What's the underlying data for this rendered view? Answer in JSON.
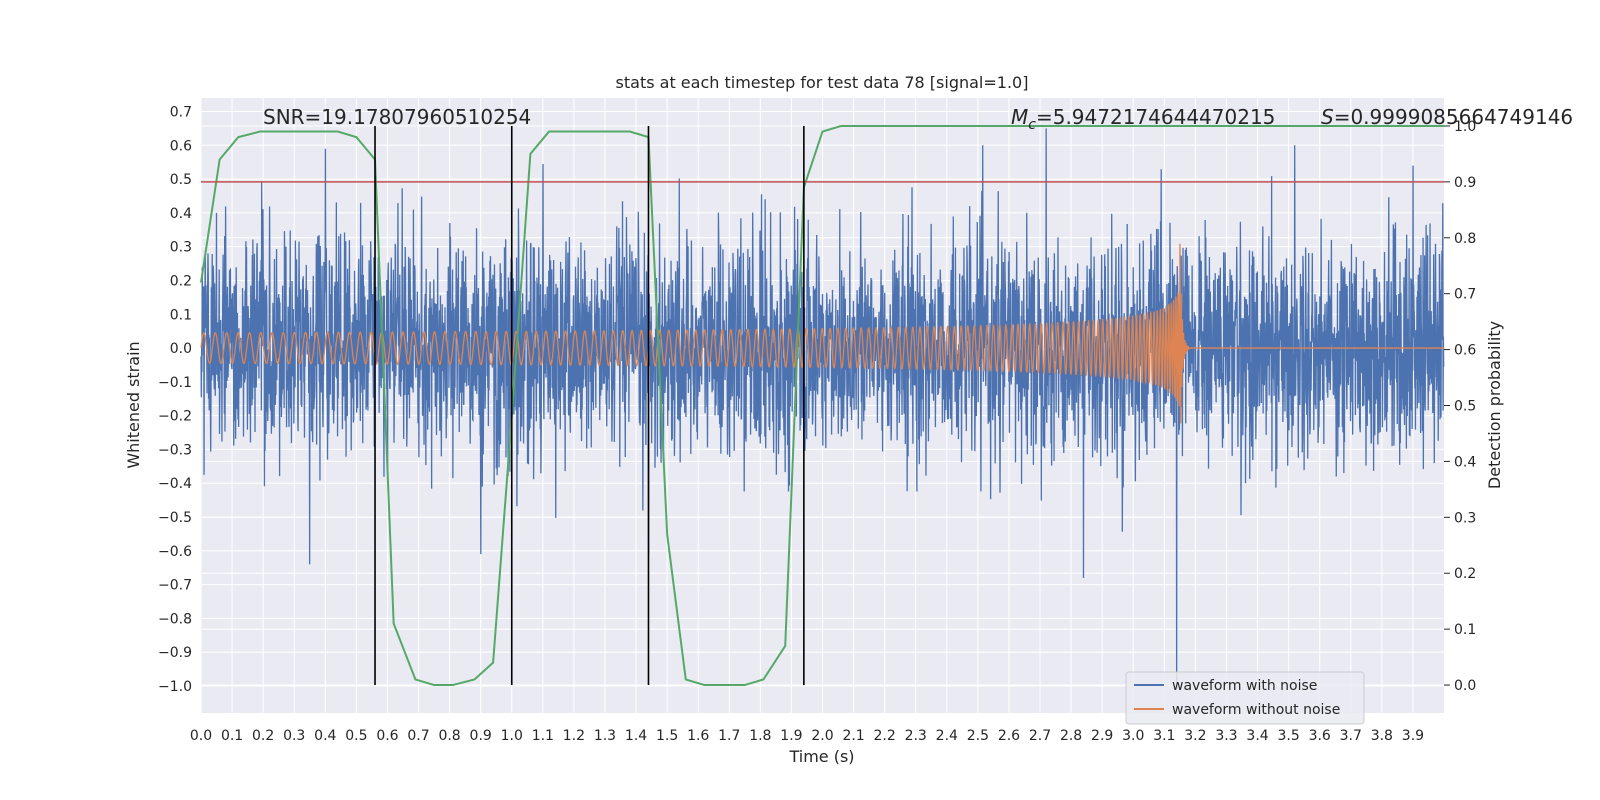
{
  "chart_data": {
    "type": "line",
    "title": "stats at each timestep for test data 78 [signal=1.0]",
    "xlabel": "Time (s)",
    "ylabel_left": "Whitened strain",
    "ylabel_right": "Detection probability",
    "xlim": [
      0.0,
      4.0
    ],
    "ylim_left": [
      -1.08,
      0.74
    ],
    "ylim_right": [
      -0.05,
      1.05
    ],
    "x_ticks": [
      "0.0",
      "0.1",
      "0.2",
      "0.3",
      "0.4",
      "0.5",
      "0.6",
      "0.7",
      "0.8",
      "0.9",
      "1.0",
      "1.1",
      "1.2",
      "1.3",
      "1.4",
      "1.5",
      "1.6",
      "1.7",
      "1.8",
      "1.9",
      "2.0",
      "2.1",
      "2.2",
      "2.3",
      "2.4",
      "2.5",
      "2.6",
      "2.7",
      "2.8",
      "2.9",
      "3.0",
      "3.1",
      "3.2",
      "3.3",
      "3.4",
      "3.5",
      "3.6",
      "3.7",
      "3.8",
      "3.9"
    ],
    "y_left_ticks": [
      "−1.0",
      "−0.9",
      "−0.8",
      "−0.7",
      "−0.6",
      "−0.5",
      "−0.4",
      "−0.3",
      "−0.2",
      "−0.1",
      "0.0",
      "0.1",
      "0.2",
      "0.3",
      "0.4",
      "0.5",
      "0.6",
      "0.7"
    ],
    "y_right_ticks": [
      "0.0",
      "0.1",
      "0.2",
      "0.3",
      "0.4",
      "0.5",
      "0.6",
      "0.7",
      "0.8",
      "0.9",
      "1.0"
    ],
    "annotations": {
      "snr": "SNR=19.17807960510254",
      "mc_symbol": "M",
      "mc_subscript": "c",
      "mc_value": "=5.9472174644470215",
      "s_symbol": "S",
      "s_value": "=0.9999085664749146"
    },
    "threshold_probability": 0.9,
    "vertical_markers": [
      0.56,
      1.0,
      1.44,
      1.94
    ],
    "series": [
      {
        "name": "waveform with noise",
        "color": "#4c72b0",
        "kind": "noise",
        "std": 0.16,
        "notable_peaks": [
          {
            "t": 0.05,
            "v": 0.4
          },
          {
            "t": 0.35,
            "v": -0.64
          },
          {
            "t": 0.4,
            "v": 0.59
          },
          {
            "t": 0.9,
            "v": -0.61
          },
          {
            "t": 1.44,
            "v": -0.61
          },
          {
            "t": 2.72,
            "v": 0.65
          },
          {
            "t": 2.84,
            "v": -0.68
          },
          {
            "t": 3.14,
            "v": -1.01
          },
          {
            "t": 3.9,
            "v": 0.54
          }
        ]
      },
      {
        "name": "waveform without noise",
        "color": "#dd8452",
        "kind": "chirp",
        "merger_time": 3.15,
        "amplitude_start": 0.045,
        "amplitude_peak": 0.33,
        "freq_start_hz": 27,
        "freq_peak_hz": 260
      },
      {
        "name": "detection probability",
        "color": "#55a868",
        "kind": "probability",
        "x": [
          0.0,
          0.06,
          0.12,
          0.19,
          0.25,
          0.31,
          0.38,
          0.44,
          0.5,
          0.56,
          0.62,
          0.69,
          0.75,
          0.81,
          0.88,
          0.94,
          1.0,
          1.06,
          1.12,
          1.19,
          1.25,
          1.31,
          1.38,
          1.44,
          1.5,
          1.56,
          1.62,
          1.69,
          1.75,
          1.81,
          1.88,
          1.94,
          2.0,
          2.06,
          2.12,
          4.0
        ],
        "y": [
          0.72,
          0.94,
          0.98,
          0.99,
          0.99,
          0.99,
          0.99,
          0.99,
          0.98,
          0.94,
          0.11,
          0.01,
          0.0,
          0.0,
          0.01,
          0.04,
          0.48,
          0.95,
          0.99,
          0.99,
          0.99,
          0.99,
          0.99,
          0.98,
          0.27,
          0.01,
          0.0,
          0.0,
          0.0,
          0.01,
          0.07,
          0.89,
          0.99,
          1.0,
          1.0,
          1.0
        ]
      }
    ],
    "legend": {
      "position": "lower-right",
      "entries": [
        {
          "label": "waveform with noise",
          "color": "#4c72b0"
        },
        {
          "label": "waveform without noise",
          "color": "#dd8452"
        }
      ]
    },
    "colors": {
      "background": "#eaeaf2",
      "grid": "#ffffff",
      "threshold": "#c44e52",
      "marker": "#000000"
    }
  }
}
